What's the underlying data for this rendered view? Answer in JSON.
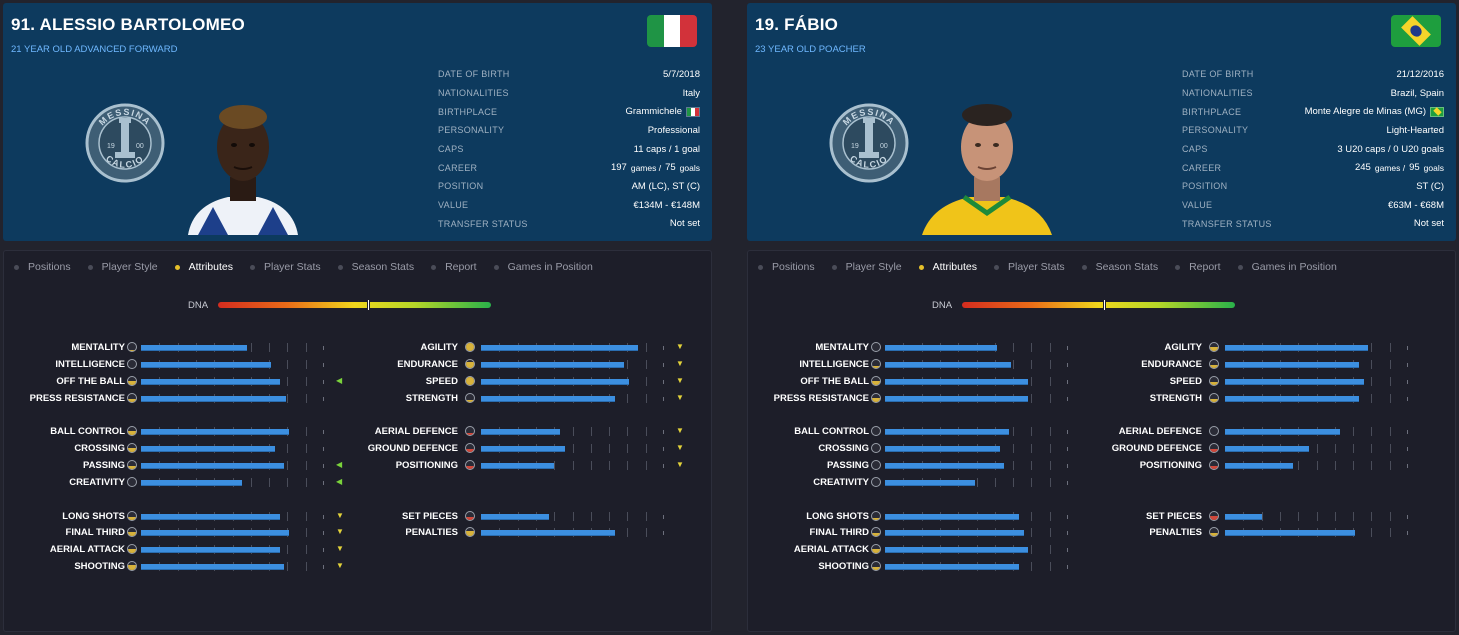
{
  "tabs": [
    "Positions",
    "Player Style",
    "Attributes",
    "Player Stats",
    "Season Stats",
    "Report",
    "Games in Position"
  ],
  "active_tab": 2,
  "dna_label": "DNA",
  "info_labels": [
    "Date of Birth",
    "Nationalities",
    "Birthplace",
    "Personality",
    "Caps",
    "Career",
    "Position",
    "Value",
    "Transfer Status"
  ],
  "club_badge": {
    "top_text": "MESSINA",
    "bottom_text": "CALCIO",
    "year_left": "19",
    "year_right": "00"
  },
  "players": [
    {
      "name": "91. ALESSIO BARTOLOMEO",
      "subtitle": "21 YEAR OLD  ADVANCED FORWARD",
      "flag": "italy",
      "dna": 0.55,
      "info": {
        "dob": "5/7/2018",
        "nationalities": "Italy",
        "birthplace": "Grammichele",
        "birthplace_flag": "italy",
        "personality": "Professional",
        "caps": "11 caps / 1 goal",
        "career_games": "197",
        "career_games_label": "games /",
        "career_goals": "75",
        "career_goals_label": "goals",
        "position": "AM (LC), ST (C)",
        "value": "€134M - €148M",
        "transfer_status": "Not set"
      },
      "attributes": {
        "left": [
          {
            "name": "MENTALITY",
            "value": 0.58,
            "icon_fill": 0.1,
            "icon_color": "gold",
            "arrow": ""
          },
          {
            "name": "INTELLIGENCE",
            "value": 0.71,
            "icon_fill": 0.0,
            "icon_color": "gold",
            "arrow": ""
          },
          {
            "name": "OFF THE BALL",
            "value": 0.76,
            "icon_fill": 0.5,
            "icon_color": "gold",
            "arrow": "left"
          },
          {
            "name": "PRESS RESISTANCE",
            "value": 0.79,
            "icon_fill": 0.4,
            "icon_color": "gold",
            "arrow": ""
          },
          {
            "name": "BALL CONTROL",
            "value": 0.81,
            "icon_fill": 0.5,
            "icon_color": "gold",
            "arrow": ""
          },
          {
            "name": "CROSSING",
            "value": 0.73,
            "icon_fill": 0.5,
            "icon_color": "gold",
            "arrow": ""
          },
          {
            "name": "PASSING",
            "value": 0.78,
            "icon_fill": 0.4,
            "icon_color": "gold",
            "arrow": "left"
          },
          {
            "name": "CREATIVITY",
            "value": 0.55,
            "icon_fill": 0.0,
            "icon_color": "gold",
            "arrow": "left"
          },
          {
            "name": "LONG SHOTS",
            "value": 0.76,
            "icon_fill": 0.4,
            "icon_color": "gold",
            "arrow": "down"
          },
          {
            "name": "FINAL THIRD",
            "value": 0.81,
            "icon_fill": 0.5,
            "icon_color": "gold",
            "arrow": "down"
          },
          {
            "name": "AERIAL ATTACK",
            "value": 0.76,
            "icon_fill": 0.5,
            "icon_color": "gold",
            "arrow": "down"
          },
          {
            "name": "SHOOTING",
            "value": 0.78,
            "icon_fill": 0.6,
            "icon_color": "gold",
            "arrow": "down"
          }
        ],
        "right": [
          {
            "name": "AGILITY",
            "value": 0.86,
            "icon_fill": 1.0,
            "icon_color": "gold",
            "arrow": "down"
          },
          {
            "name": "ENDURANCE",
            "value": 0.78,
            "icon_fill": 0.8,
            "icon_color": "gold",
            "arrow": "down"
          },
          {
            "name": "SPEED",
            "value": 0.81,
            "icon_fill": 1.0,
            "icon_color": "gold",
            "arrow": "down"
          },
          {
            "name": "STRENGTH",
            "value": 0.73,
            "icon_fill": 0.3,
            "icon_color": "gold",
            "arrow": "down"
          },
          {
            "name": "AERIAL DEFENCE",
            "value": 0.43,
            "icon_fill": 0.3,
            "icon_color": "red",
            "arrow": "down"
          },
          {
            "name": "GROUND DEFENCE",
            "value": 0.46,
            "icon_fill": 0.4,
            "icon_color": "red",
            "arrow": "down"
          },
          {
            "name": "POSITIONING",
            "value": 0.4,
            "icon_fill": 0.4,
            "icon_color": "red",
            "arrow": "down"
          },
          {
            "name": "SET PIECES",
            "value": 0.37,
            "icon_fill": 0.4,
            "icon_color": "red",
            "arrow": ""
          },
          {
            "name": "PENALTIES",
            "value": 0.73,
            "icon_fill": 0.6,
            "icon_color": "gold",
            "arrow": ""
          }
        ]
      }
    },
    {
      "name": "19. FÁBIO",
      "subtitle": "23 YEAR OLD POACHER",
      "flag": "brazil",
      "dna": 0.52,
      "info": {
        "dob": "21/12/2016",
        "nationalities": "Brazil, Spain",
        "birthplace": "Monte Alegre de Minas (MG)",
        "birthplace_flag": "brazil",
        "personality": "Light-Hearted",
        "caps": "3 U20 caps / 0 U20 goals",
        "career_games": "245",
        "career_games_label": "games /",
        "career_goals": "95",
        "career_goals_label": "goals",
        "position": "ST (C)",
        "value": "€63M - €68M",
        "transfer_status": "Not set"
      },
      "attributes": {
        "left": [
          {
            "name": "MENTALITY",
            "value": 0.61,
            "icon_fill": 0.0,
            "icon_color": "gold",
            "arrow": ""
          },
          {
            "name": "INTELLIGENCE",
            "value": 0.69,
            "icon_fill": 0.3,
            "icon_color": "gold",
            "arrow": ""
          },
          {
            "name": "OFF THE BALL",
            "value": 0.78,
            "icon_fill": 0.5,
            "icon_color": "gold",
            "arrow": ""
          },
          {
            "name": "PRESS RESISTANCE",
            "value": 0.78,
            "icon_fill": 0.5,
            "icon_color": "gold",
            "arrow": ""
          },
          {
            "name": "BALL CONTROL",
            "value": 0.68,
            "icon_fill": 0.0,
            "icon_color": "gold",
            "arrow": ""
          },
          {
            "name": "CROSSING",
            "value": 0.63,
            "icon_fill": 0.0,
            "icon_color": "gold",
            "arrow": ""
          },
          {
            "name": "PASSING",
            "value": 0.65,
            "icon_fill": 0.0,
            "icon_color": "gold",
            "arrow": ""
          },
          {
            "name": "CREATIVITY",
            "value": 0.49,
            "icon_fill": 0.0,
            "icon_color": "gold",
            "arrow": ""
          },
          {
            "name": "LONG SHOTS",
            "value": 0.73,
            "icon_fill": 0.3,
            "icon_color": "gold",
            "arrow": ""
          },
          {
            "name": "FINAL THIRD",
            "value": 0.76,
            "icon_fill": 0.4,
            "icon_color": "gold",
            "arrow": ""
          },
          {
            "name": "AERIAL ATTACK",
            "value": 0.78,
            "icon_fill": 0.5,
            "icon_color": "gold",
            "arrow": ""
          },
          {
            "name": "SHOOTING",
            "value": 0.73,
            "icon_fill": 0.4,
            "icon_color": "gold",
            "arrow": ""
          }
        ],
        "right": [
          {
            "name": "AGILITY",
            "value": 0.78,
            "icon_fill": 0.5,
            "icon_color": "gold",
            "arrow": ""
          },
          {
            "name": "ENDURANCE",
            "value": 0.73,
            "icon_fill": 0.4,
            "icon_color": "gold",
            "arrow": ""
          },
          {
            "name": "SPEED",
            "value": 0.76,
            "icon_fill": 0.4,
            "icon_color": "gold",
            "arrow": ""
          },
          {
            "name": "STRENGTH",
            "value": 0.73,
            "icon_fill": 0.4,
            "icon_color": "gold",
            "arrow": ""
          },
          {
            "name": "AERIAL DEFENCE",
            "value": 0.63,
            "icon_fill": 0.0,
            "icon_color": "red",
            "arrow": ""
          },
          {
            "name": "GROUND DEFENCE",
            "value": 0.46,
            "icon_fill": 0.4,
            "icon_color": "red",
            "arrow": ""
          },
          {
            "name": "POSITIONING",
            "value": 0.37,
            "icon_fill": 0.4,
            "icon_color": "red",
            "arrow": ""
          },
          {
            "name": "SET PIECES",
            "value": 0.2,
            "icon_fill": 0.5,
            "icon_color": "red",
            "arrow": ""
          },
          {
            "name": "PENALTIES",
            "value": 0.71,
            "icon_fill": 0.4,
            "icon_color": "gold",
            "arrow": ""
          }
        ]
      }
    }
  ],
  "colors": {
    "header_bg": "#0d3a5e",
    "page_bg": "#22232d",
    "bar_fill": "#3c8fe0",
    "accent_dot": "#e5c02a",
    "subtitle": "#6fb8ff"
  }
}
